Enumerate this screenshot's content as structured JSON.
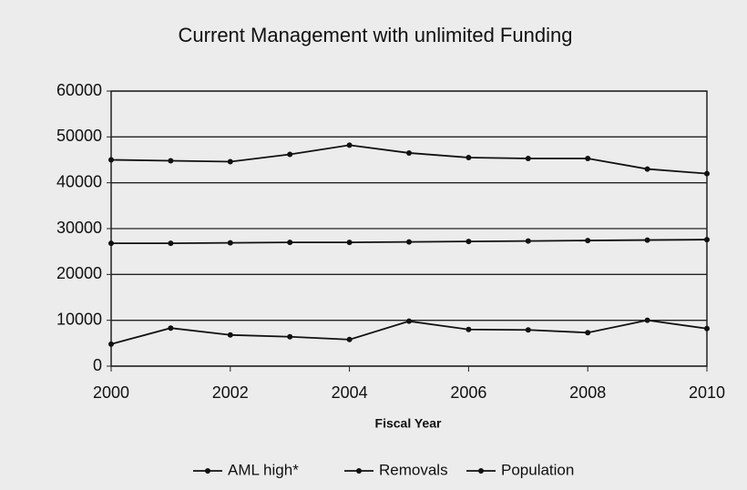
{
  "chart_data": {
    "type": "line",
    "title": "Current Management with unlimited Funding",
    "xlabel": "Fiscal Year",
    "x": [
      2000,
      2001,
      2002,
      2003,
      2004,
      2005,
      2006,
      2007,
      2008,
      2009,
      2010
    ],
    "xlim": [
      2000,
      2010
    ],
    "xticks": [
      2000,
      2002,
      2004,
      2006,
      2008,
      2010
    ],
    "ylim": [
      0,
      60000
    ],
    "yticks": [
      0,
      10000,
      20000,
      30000,
      40000,
      50000,
      60000
    ],
    "grid": true,
    "legend": "bottom",
    "series": [
      {
        "name": "AML high*",
        "color": "#111111",
        "values": [
          26800,
          26800,
          26900,
          27000,
          27000,
          27100,
          27200,
          27300,
          27400,
          27500,
          27600
        ]
      },
      {
        "name": "Removals",
        "color": "#111111",
        "values": [
          4800,
          8300,
          6800,
          6400,
          5800,
          9800,
          8000,
          7900,
          7300,
          10000,
          8200
        ]
      },
      {
        "name": "Population",
        "color": "#111111",
        "values": [
          45000,
          44800,
          44600,
          46200,
          48200,
          46500,
          45500,
          45300,
          45300,
          43000,
          42000
        ]
      }
    ]
  }
}
